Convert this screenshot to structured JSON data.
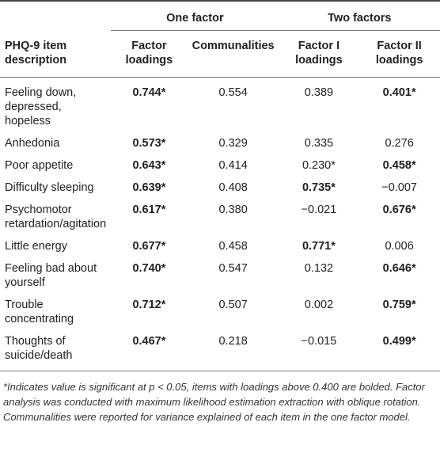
{
  "table": {
    "group_headers": [
      "One factor",
      "Two factors"
    ],
    "column_headers": [
      "PHQ-9 item description",
      "Factor loadings",
      "Communalities",
      "Factor I loadings",
      "Factor II loadings"
    ],
    "rows": [
      {
        "item": "Feeling down, depressed, hopeless",
        "cells": [
          "0.744*",
          "0.554",
          "0.389",
          "0.401*"
        ],
        "bold": [
          true,
          false,
          false,
          true
        ]
      },
      {
        "item": "Anhedonia",
        "cells": [
          "0.573*",
          "0.329",
          "0.335",
          "0.276"
        ],
        "bold": [
          true,
          false,
          false,
          false
        ]
      },
      {
        "item": "Poor appetite",
        "cells": [
          "0.643*",
          "0.414",
          "0.230*",
          "0.458*"
        ],
        "bold": [
          true,
          false,
          false,
          true
        ]
      },
      {
        "item": "Difficulty sleeping",
        "cells": [
          "0.639*",
          "0.408",
          "0.735*",
          "−0.007"
        ],
        "bold": [
          true,
          false,
          true,
          false
        ]
      },
      {
        "item": "Psychomotor retardation/agitation",
        "cells": [
          "0.617*",
          "0.380",
          "−0.021",
          "0.676*"
        ],
        "bold": [
          true,
          false,
          false,
          true
        ]
      },
      {
        "item": "Little energy",
        "cells": [
          "0.677*",
          "0.458",
          "0.771*",
          "0.006"
        ],
        "bold": [
          true,
          false,
          true,
          false
        ]
      },
      {
        "item": "Feeling bad about yourself",
        "cells": [
          "0.740*",
          "0.547",
          "0.132",
          "0.646*"
        ],
        "bold": [
          true,
          false,
          false,
          true
        ]
      },
      {
        "item": "Trouble concentrating",
        "cells": [
          "0.712*",
          "0.507",
          "0.002",
          "0.759*"
        ],
        "bold": [
          true,
          false,
          false,
          true
        ]
      },
      {
        "item": "Thoughts of suicide/death",
        "cells": [
          "0.467*",
          "0.218",
          "−0.015",
          "0.499*"
        ],
        "bold": [
          true,
          false,
          false,
          true
        ]
      }
    ],
    "footnote": "*Indicates value is significant at p < 0.05, items with loadings above 0.400 are bolded. Factor analysis was conducted with maximum likelihood estimation extraction with oblique rotation. Communalities were reported for variance explained of each item in the one factor model."
  }
}
